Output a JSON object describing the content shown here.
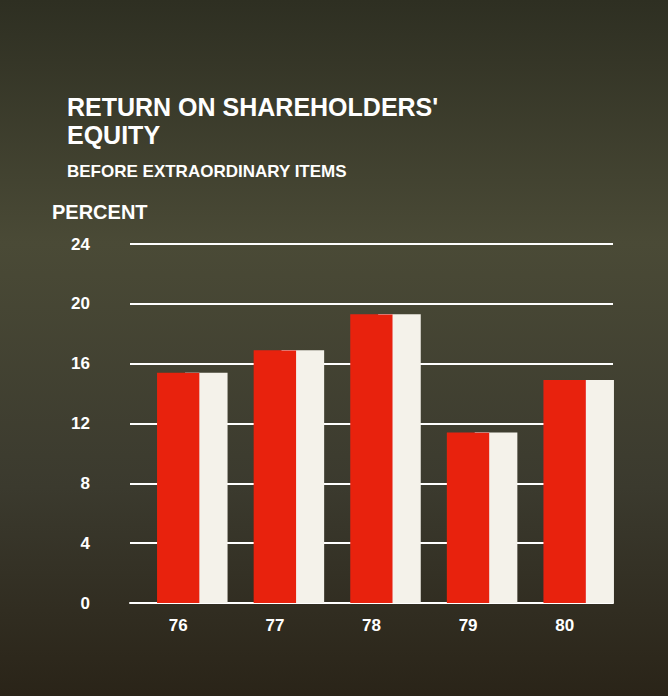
{
  "chart_data": {
    "type": "bar",
    "title": "RETURN ON SHAREHOLDERS' EQUITY",
    "subtitle": "BEFORE EXTRAORDINARY ITEMS",
    "y_label": "PERCENT",
    "categories": [
      "76",
      "77",
      "78",
      "79",
      "80"
    ],
    "values": [
      15.4,
      16.9,
      19.3,
      11.4,
      14.9
    ],
    "color": "#e8220e",
    "ylim": [
      0,
      24
    ],
    "yticks": [
      0,
      4,
      8,
      12,
      16,
      20,
      24
    ],
    "grid": true
  }
}
